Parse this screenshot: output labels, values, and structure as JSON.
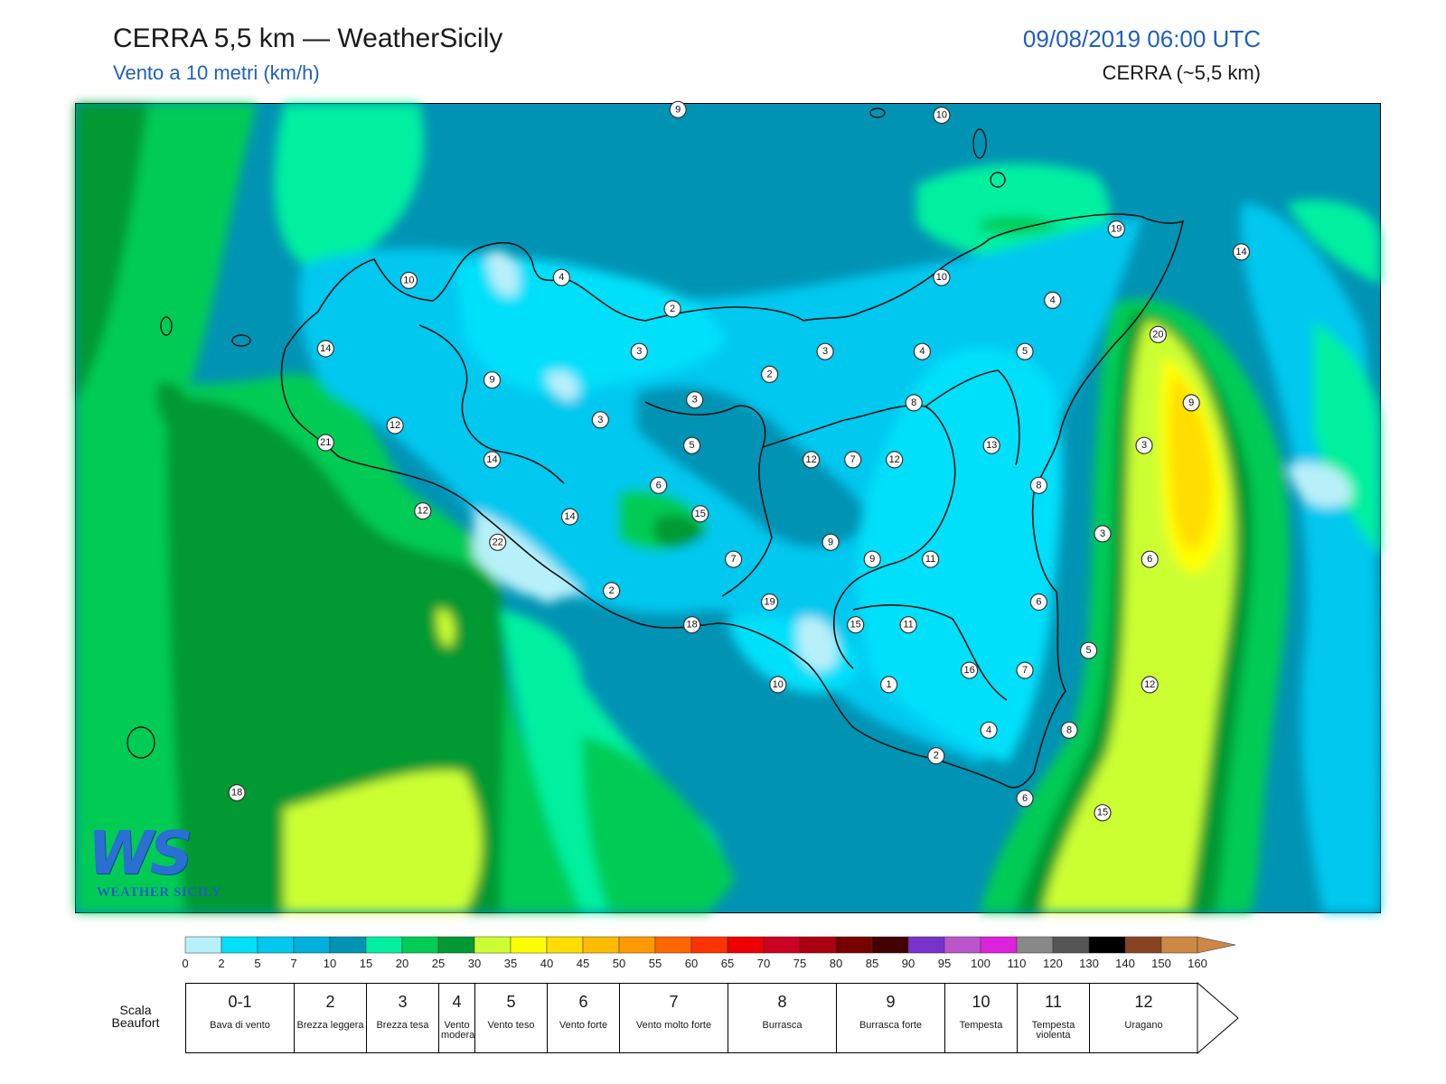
{
  "header": {
    "title": "CERRA 5,5 km — WeatherSicily",
    "subtitle": "Vento a 10 metri (km/h)",
    "datetime": "09/08/2019 06:00 UTC",
    "model": "CERRA (~5,5 km)"
  },
  "logo": {
    "main": "WS",
    "sub": "WEATHER SICILY"
  },
  "stations": [
    {
      "v": "9",
      "lon": 13.52,
      "lat": 38.8
    },
    {
      "v": "10",
      "lon": 14.47,
      "lat": 38.78
    },
    {
      "v": "19",
      "lon": 15.1,
      "lat": 38.38
    },
    {
      "v": "14",
      "lon": 15.55,
      "lat": 38.3
    },
    {
      "v": "10",
      "lon": 12.55,
      "lat": 38.2
    },
    {
      "v": "4",
      "lon": 13.1,
      "lat": 38.21
    },
    {
      "v": "2",
      "lon": 13.5,
      "lat": 38.1
    },
    {
      "v": "10",
      "lon": 14.47,
      "lat": 38.21
    },
    {
      "v": "4",
      "lon": 14.87,
      "lat": 38.13
    },
    {
      "v": "20",
      "lon": 15.25,
      "lat": 38.01
    },
    {
      "v": "14",
      "lon": 12.25,
      "lat": 37.96
    },
    {
      "v": "9",
      "lon": 12.85,
      "lat": 37.85
    },
    {
      "v": "3",
      "lon": 13.38,
      "lat": 37.95
    },
    {
      "v": "2",
      "lon": 13.85,
      "lat": 37.87
    },
    {
      "v": "3",
      "lon": 14.05,
      "lat": 37.95
    },
    {
      "v": "4",
      "lon": 14.4,
      "lat": 37.95
    },
    {
      "v": "5",
      "lon": 14.77,
      "lat": 37.95
    },
    {
      "v": "3",
      "lon": 13.58,
      "lat": 37.78
    },
    {
      "v": "8",
      "lon": 14.37,
      "lat": 37.77
    },
    {
      "v": "9",
      "lon": 15.37,
      "lat": 37.77
    },
    {
      "v": "12",
      "lon": 12.5,
      "lat": 37.69
    },
    {
      "v": "3",
      "lon": 13.24,
      "lat": 37.71
    },
    {
      "v": "21",
      "lon": 12.25,
      "lat": 37.63
    },
    {
      "v": "14",
      "lon": 12.85,
      "lat": 37.57
    },
    {
      "v": "5",
      "lon": 13.57,
      "lat": 37.62
    },
    {
      "v": "12",
      "lon": 14.0,
      "lat": 37.57
    },
    {
      "v": "7",
      "lon": 14.15,
      "lat": 37.57
    },
    {
      "v": "12",
      "lon": 14.3,
      "lat": 37.57
    },
    {
      "v": "13",
      "lon": 14.65,
      "lat": 37.62
    },
    {
      "v": "3",
      "lon": 15.2,
      "lat": 37.62
    },
    {
      "v": "6",
      "lon": 13.45,
      "lat": 37.48
    },
    {
      "v": "8",
      "lon": 14.82,
      "lat": 37.48
    },
    {
      "v": "12",
      "lon": 12.6,
      "lat": 37.39
    },
    {
      "v": "14",
      "lon": 13.13,
      "lat": 37.37
    },
    {
      "v": "15",
      "lon": 13.6,
      "lat": 37.38
    },
    {
      "v": "22",
      "lon": 12.87,
      "lat": 37.28
    },
    {
      "v": "9",
      "lon": 14.07,
      "lat": 37.28
    },
    {
      "v": "3",
      "lon": 15.05,
      "lat": 37.31
    },
    {
      "v": "7",
      "lon": 13.72,
      "lat": 37.22
    },
    {
      "v": "9",
      "lon": 14.22,
      "lat": 37.22
    },
    {
      "v": "11",
      "lon": 14.43,
      "lat": 37.22
    },
    {
      "v": "6",
      "lon": 15.22,
      "lat": 37.22
    },
    {
      "v": "2",
      "lon": 13.28,
      "lat": 37.11
    },
    {
      "v": "19",
      "lon": 13.85,
      "lat": 37.07
    },
    {
      "v": "6",
      "lon": 14.82,
      "lat": 37.07
    },
    {
      "v": "18",
      "lon": 13.57,
      "lat": 36.99
    },
    {
      "v": "15",
      "lon": 14.16,
      "lat": 36.99
    },
    {
      "v": "11",
      "lon": 14.35,
      "lat": 36.99
    },
    {
      "v": "5",
      "lon": 15.0,
      "lat": 36.9
    },
    {
      "v": "16",
      "lon": 14.57,
      "lat": 36.83
    },
    {
      "v": "7",
      "lon": 14.77,
      "lat": 36.83
    },
    {
      "v": "12",
      "lon": 15.22,
      "lat": 36.78
    },
    {
      "v": "10",
      "lon": 13.88,
      "lat": 36.78
    },
    {
      "v": "1",
      "lon": 14.28,
      "lat": 36.78
    },
    {
      "v": "4",
      "lon": 14.64,
      "lat": 36.62
    },
    {
      "v": "8",
      "lon": 14.93,
      "lat": 36.62
    },
    {
      "v": "2",
      "lon": 14.45,
      "lat": 36.53
    },
    {
      "v": "6",
      "lon": 14.77,
      "lat": 36.38
    },
    {
      "v": "15",
      "lon": 15.05,
      "lat": 36.33
    },
    {
      "v": "18",
      "lon": 11.93,
      "lat": 36.4
    }
  ],
  "colorbar": {
    "ticks": [
      "0",
      "2",
      "5",
      "7",
      "10",
      "15",
      "20",
      "25",
      "30",
      "35",
      "40",
      "45",
      "50",
      "55",
      "60",
      "65",
      "70",
      "75",
      "80",
      "85",
      "90",
      "95",
      "100",
      "110",
      "120",
      "130",
      "140",
      "150",
      "160"
    ],
    "colors": [
      "#b8f0fa",
      "#00e0fa",
      "#00c8ef",
      "#00b0dc",
      "#0093b4",
      "#00f0a0",
      "#00cc55",
      "#009933",
      "#ccff33",
      "#ffff00",
      "#ffdd00",
      "#ffbb00",
      "#ff9900",
      "#ff6600",
      "#ff3300",
      "#ee0000",
      "#cc0022",
      "#aa0011",
      "#770000",
      "#440000",
      "#7733cc",
      "#bb55cc",
      "#dd22dd",
      "#888888",
      "#555555",
      "#000000",
      "#884422",
      "#cc8844"
    ],
    "arrow_color": "#cc8844"
  },
  "beaufort": {
    "label": "Scala Beaufort",
    "classes": [
      {
        "n": "0-1",
        "d": "Bava di vento"
      },
      {
        "n": "2",
        "d": "Brezza leggera"
      },
      {
        "n": "3",
        "d": "Brezza tesa"
      },
      {
        "n": "4",
        "d": "Vento moderato"
      },
      {
        "n": "5",
        "d": "Vento teso"
      },
      {
        "n": "6",
        "d": "Vento forte"
      },
      {
        "n": "7",
        "d": "Vento molto forte"
      },
      {
        "n": "8",
        "d": "Burrasca"
      },
      {
        "n": "9",
        "d": "Burrasca forte"
      },
      {
        "n": "10",
        "d": "Tempesta"
      },
      {
        "n": "11",
        "d": "Tempesta violenta"
      },
      {
        "n": "12",
        "d": "Uragano"
      }
    ]
  }
}
